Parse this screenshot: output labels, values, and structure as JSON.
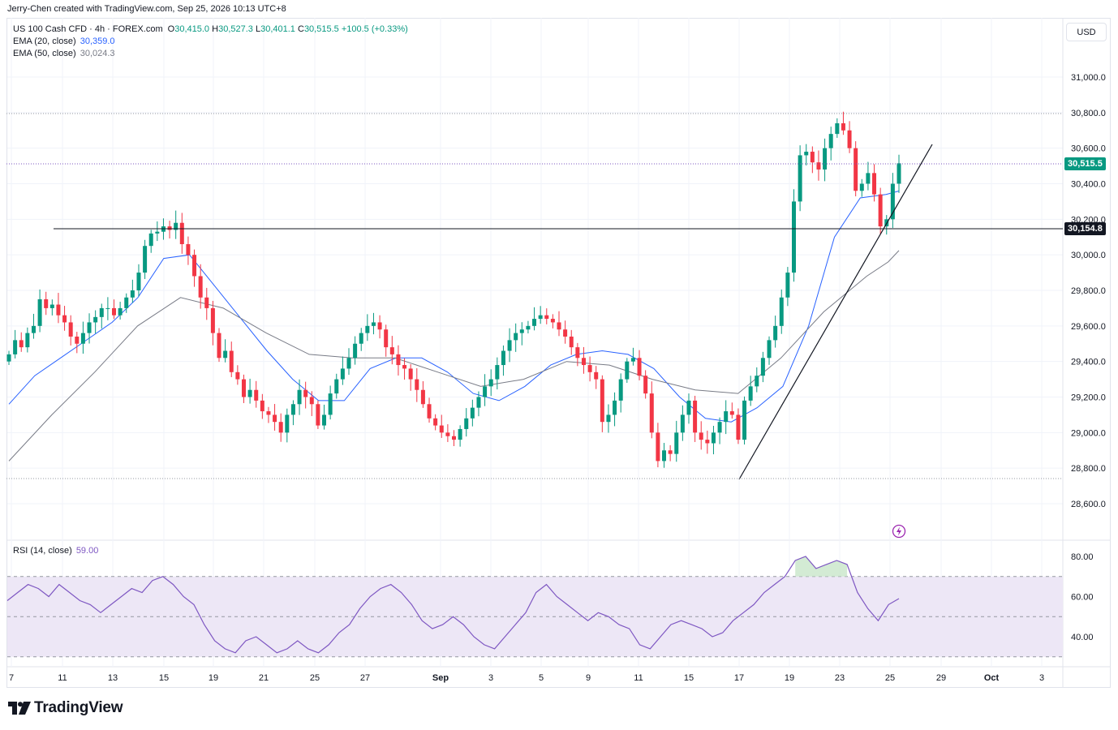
{
  "header": {
    "credit": "Jerry-Chen created with TradingView.com, Sep 25, 2026 10:13 UTC+8"
  },
  "legend": {
    "symbol": "US 100 Cash CFD · 4h · FOREX.com",
    "open_label": "O",
    "open": "30,415.0",
    "high_label": "H",
    "high": "30,527.3",
    "low_label": "L",
    "low": "30,401.1",
    "close_label": "C",
    "close": "30,515.5",
    "change": "+100.5 (+0.33%)",
    "ema20_label": "EMA (20, close)",
    "ema20_value": "30,359.0",
    "ema50_label": "EMA (50, close)",
    "ema50_value": "30,024.3",
    "rsi_label": "RSI (14, close)",
    "rsi_value": "59.00"
  },
  "currency_button": "USD",
  "price_tags": {
    "last": "30,515.5",
    "level": "30,154.8"
  },
  "brand": {
    "name": "TradingView"
  },
  "colors": {
    "up": "#089981",
    "down": "#f23645",
    "ema20": "#2962ff",
    "ema50": "#787b86",
    "rsi": "#7e57c2",
    "rsi_band": "#ede7f6",
    "grid": "#f0f3fa",
    "axis_text": "#131722"
  },
  "chart_data": [
    {
      "type": "candlestick",
      "title": "US 100 Cash CFD · 4h · FOREX.com",
      "ylim": [
        28500,
        31200
      ],
      "y_ticks": [
        "31,000.0",
        "30,800.0",
        "30,600.0",
        "30,400.0",
        "30,200.0",
        "30,000.0",
        "29,800.0",
        "29,600.0",
        "29,400.0",
        "29,200.0",
        "29,000.0",
        "28,800.0",
        "28,600.0"
      ],
      "y_tick_values": [
        31000,
        30800,
        30600,
        30400,
        30200,
        30000,
        29800,
        29600,
        29400,
        29200,
        29000,
        28800,
        28600
      ],
      "x_ticks": [
        "7",
        "11",
        "13",
        "15",
        "19",
        "21",
        "25",
        "27",
        "Sep",
        "3",
        "5",
        "9",
        "11",
        "15",
        "17",
        "19",
        "23",
        "25",
        "29",
        "Oct",
        "3"
      ],
      "close_path": [
        29440,
        29520,
        29480,
        29560,
        29600,
        29750,
        29700,
        29720,
        29660,
        29620,
        29540,
        29500,
        29560,
        29620,
        29650,
        29700,
        29700,
        29660,
        29700,
        29760,
        29800,
        29900,
        30050,
        30120,
        30130,
        30160,
        30140,
        30180,
        30060,
        30000,
        29880,
        29760,
        29700,
        29560,
        29420,
        29460,
        29340,
        29300,
        29200,
        29240,
        29180,
        29120,
        29100,
        29060,
        29000,
        29100,
        29160,
        29240,
        29200,
        29160,
        29040,
        29100,
        29220,
        29300,
        29360,
        29420,
        29500,
        29560,
        29600,
        29620,
        29580,
        29480,
        29440,
        29380,
        29360,
        29300,
        29240,
        29160,
        29080,
        29040,
        29000,
        28980,
        28960,
        29020,
        29080,
        29140,
        29200,
        29260,
        29300,
        29380,
        29460,
        29520,
        29560,
        29580,
        29600,
        29640,
        29660,
        29640,
        29620,
        29580,
        29540,
        29480,
        29420,
        29380,
        29340,
        29300,
        29060,
        29100,
        29180,
        29300,
        29400,
        29420,
        29320,
        29220,
        29000,
        28840,
        28900,
        28880,
        29000,
        29100,
        29180,
        29000,
        28960,
        28940,
        29000,
        29060,
        29120,
        29100,
        28960,
        29180,
        29260,
        29320,
        29420,
        29520,
        29600,
        29760,
        29900,
        30300,
        30560,
        30580,
        30520,
        30480,
        30600,
        30680,
        30740,
        30700,
        30600,
        30360,
        30400,
        30460,
        30340,
        30160,
        30200,
        30400,
        30515
      ]
    },
    {
      "type": "line",
      "name": "EMA (20, close)",
      "value": 30359.0,
      "points": [
        [
          0,
          29160
        ],
        [
          20,
          29320
        ],
        [
          40,
          29420
        ],
        [
          60,
          29520
        ],
        [
          80,
          29620
        ],
        [
          100,
          29760
        ],
        [
          120,
          29980
        ],
        [
          140,
          30000
        ],
        [
          160,
          29820
        ],
        [
          180,
          29640
        ],
        [
          200,
          29460
        ],
        [
          220,
          29300
        ],
        [
          240,
          29180
        ],
        [
          260,
          29180
        ],
        [
          280,
          29360
        ],
        [
          300,
          29420
        ],
        [
          320,
          29420
        ],
        [
          340,
          29340
        ],
        [
          360,
          29220
        ],
        [
          380,
          29180
        ],
        [
          400,
          29260
        ],
        [
          420,
          29380
        ],
        [
          440,
          29440
        ],
        [
          460,
          29460
        ],
        [
          480,
          29440
        ],
        [
          500,
          29360
        ],
        [
          520,
          29200
        ],
        [
          540,
          29080
        ],
        [
          560,
          29060
        ],
        [
          580,
          29140
        ],
        [
          600,
          29260
        ],
        [
          620,
          29600
        ],
        [
          640,
          30100
        ],
        [
          660,
          30320
        ],
        [
          680,
          30340
        ],
        [
          690,
          30359
        ]
      ]
    },
    {
      "type": "line",
      "name": "EMA (50, close)",
      "value": 30024.3,
      "points": [
        [
          0,
          28840
        ],
        [
          40,
          29100
        ],
        [
          80,
          29340
        ],
        [
          120,
          29600
        ],
        [
          160,
          29760
        ],
        [
          200,
          29700
        ],
        [
          240,
          29560
        ],
        [
          280,
          29440
        ],
        [
          320,
          29420
        ],
        [
          360,
          29420
        ],
        [
          400,
          29340
        ],
        [
          440,
          29260
        ],
        [
          480,
          29300
        ],
        [
          520,
          29400
        ],
        [
          560,
          29380
        ],
        [
          600,
          29300
        ],
        [
          640,
          29240
        ],
        [
          680,
          29220
        ],
        [
          720,
          29420
        ],
        [
          760,
          29680
        ],
        [
          800,
          29880
        ],
        [
          820,
          29960
        ],
        [
          830,
          30024
        ]
      ]
    },
    {
      "type": "line",
      "name": "RSI (14, close)",
      "ylim": [
        25,
        85
      ],
      "y_ticks": [
        "80.00",
        "60.00",
        "40.00"
      ],
      "y_tick_values": [
        80,
        60,
        40
      ],
      "band": [
        30,
        70
      ],
      "midline": 50,
      "value": 59.0,
      "points": [
        [
          0,
          58
        ],
        [
          5,
          62
        ],
        [
          10,
          66
        ],
        [
          15,
          64
        ],
        [
          20,
          60
        ],
        [
          25,
          66
        ],
        [
          30,
          62
        ],
        [
          35,
          58
        ],
        [
          40,
          56
        ],
        [
          45,
          52
        ],
        [
          50,
          56
        ],
        [
          55,
          60
        ],
        [
          60,
          64
        ],
        [
          65,
          62
        ],
        [
          70,
          68
        ],
        [
          75,
          70
        ],
        [
          80,
          66
        ],
        [
          85,
          60
        ],
        [
          90,
          56
        ],
        [
          95,
          46
        ],
        [
          100,
          38
        ],
        [
          105,
          34
        ],
        [
          110,
          32
        ],
        [
          115,
          38
        ],
        [
          120,
          40
        ],
        [
          125,
          36
        ],
        [
          130,
          32
        ],
        [
          135,
          34
        ],
        [
          140,
          38
        ],
        [
          145,
          34
        ],
        [
          150,
          32
        ],
        [
          155,
          36
        ],
        [
          160,
          42
        ],
        [
          165,
          46
        ],
        [
          170,
          54
        ],
        [
          175,
          60
        ],
        [
          180,
          64
        ],
        [
          185,
          66
        ],
        [
          190,
          62
        ],
        [
          195,
          56
        ],
        [
          200,
          48
        ],
        [
          205,
          44
        ],
        [
          210,
          46
        ],
        [
          215,
          50
        ],
        [
          220,
          46
        ],
        [
          225,
          40
        ],
        [
          230,
          36
        ],
        [
          235,
          34
        ],
        [
          240,
          40
        ],
        [
          245,
          46
        ],
        [
          250,
          52
        ],
        [
          255,
          62
        ],
        [
          260,
          66
        ],
        [
          265,
          60
        ],
        [
          270,
          56
        ],
        [
          275,
          52
        ],
        [
          280,
          48
        ],
        [
          285,
          52
        ],
        [
          290,
          50
        ],
        [
          295,
          46
        ],
        [
          300,
          44
        ],
        [
          305,
          36
        ],
        [
          310,
          34
        ],
        [
          315,
          40
        ],
        [
          320,
          46
        ],
        [
          325,
          48
        ],
        [
          330,
          46
        ],
        [
          335,
          44
        ],
        [
          340,
          40
        ],
        [
          345,
          42
        ],
        [
          350,
          48
        ],
        [
          355,
          52
        ],
        [
          360,
          56
        ],
        [
          365,
          62
        ],
        [
          370,
          66
        ],
        [
          375,
          70
        ],
        [
          380,
          78
        ],
        [
          385,
          80
        ],
        [
          390,
          74
        ],
        [
          395,
          76
        ],
        [
          400,
          78
        ],
        [
          405,
          76
        ],
        [
          410,
          62
        ],
        [
          415,
          54
        ],
        [
          420,
          48
        ],
        [
          425,
          56
        ],
        [
          430,
          59
        ]
      ]
    }
  ]
}
